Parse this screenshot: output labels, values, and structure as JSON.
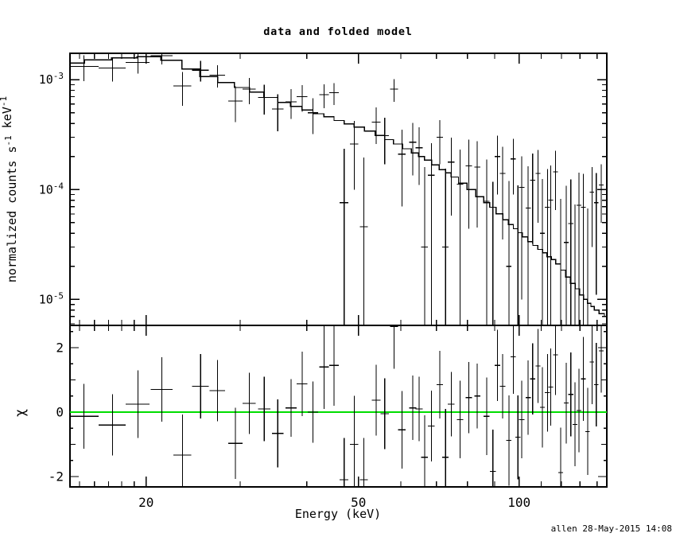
{
  "title": "data and folded model",
  "x_axis_label": "Energy (keV)",
  "y_axis_label_parts": [
    [
      "normalized counts s",
      0
    ],
    [
      "-1",
      1
    ],
    [
      " keV",
      0
    ],
    [
      "-1",
      1
    ]
  ],
  "residual_axis_label": "χ",
  "timestamp": "allen 28-May-2015 14:08",
  "colors": {
    "foreground": "#000000",
    "background": "#ffffff",
    "data": "#000000",
    "model": "#000000",
    "zero_line": "#00dd00"
  },
  "chart_data": {
    "type": "scatter",
    "title": "data and folded model",
    "xlabel": "Energy (keV)",
    "xscale": "log",
    "xlim": [
      14.4,
      146
    ],
    "xticks_labeled": [
      {
        "v": 20,
        "label": "20"
      },
      {
        "v": 50,
        "label": "50"
      },
      {
        "v": 100,
        "label": "100"
      }
    ],
    "xticks_minor": [
      15,
      16,
      17,
      18,
      19,
      30,
      40,
      60,
      70,
      80,
      90,
      110,
      120,
      130,
      140
    ],
    "panels": [
      {
        "id": "spectrum",
        "ylabel": "normalized counts s^-1 keV^-1",
        "yscale": "log",
        "ylim": [
          5.8e-06,
          0.00174
        ],
        "yticks_labeled": [
          {
            "v": 0.001,
            "mantissa": "10",
            "exp": "-3"
          },
          {
            "v": 0.0001,
            "mantissa": "10",
            "exp": "-4"
          },
          {
            "v": 1e-05,
            "mantissa": "10",
            "exp": "-5"
          }
        ],
        "legend": [
          "data (crosses with error bars)",
          "folded model (stepped line)"
        ]
      },
      {
        "id": "residuals",
        "ylabel": "χ",
        "yscale": "linear",
        "ylim": [
          -2.32,
          2.69
        ],
        "yticks_labeled": [
          {
            "v": 2,
            "label": "2"
          },
          {
            "v": 0,
            "label": "0"
          },
          {
            "v": -2,
            "label": "-2"
          }
        ],
        "yticks_minor": [
          -1,
          1
        ],
        "yticks_sub": [
          -1.5,
          -0.5,
          0.5,
          1.5,
          2.5
        ],
        "zero_line": {
          "y": 0,
          "color": "#00dd00"
        }
      }
    ],
    "bins_fields": [
      "energy_keV",
      "energy_halfwidth_keV",
      "rate_counts_s_keV",
      "rate_error",
      "chi",
      "chi_error"
    ],
    "bins": [
      [
        15.3,
        1.0,
        0.00132,
        0.00035,
        -0.13,
        1.0
      ],
      [
        17.3,
        1.0,
        0.00128,
        0.00032,
        -0.4,
        0.95
      ],
      [
        19.3,
        1.0,
        0.00144,
        0.0003,
        0.25,
        1.05
      ],
      [
        21.4,
        1.0,
        0.00166,
        0.00028,
        0.7,
        1.0
      ],
      [
        23.4,
        0.9,
        0.00088,
        0.0003,
        -1.33,
        1.25
      ],
      [
        25.3,
        0.9,
        0.00122,
        0.00026,
        0.8,
        1.0
      ],
      [
        27.2,
        0.9,
        0.0011,
        0.00025,
        0.67,
        0.95
      ],
      [
        29.4,
        0.9,
        0.00064,
        0.00023,
        -0.97,
        1.1
      ],
      [
        31.2,
        0.9,
        0.00082,
        0.00022,
        0.27,
        0.95
      ],
      [
        33.3,
        0.9,
        0.00069,
        0.00021,
        0.1,
        1.0
      ],
      [
        35.3,
        0.9,
        0.00054,
        0.0002,
        -0.66,
        1.05
      ],
      [
        37.4,
        0.9,
        0.00063,
        0.00019,
        0.13,
        0.9
      ],
      [
        39.2,
        0.9,
        0.0007,
        0.00019,
        0.88,
        1.0
      ],
      [
        41.1,
        0.9,
        0.0005,
        0.00018,
        0.0,
        0.95
      ],
      [
        43.1,
        0.9,
        0.00073,
        0.00018,
        1.4,
        1.3
      ],
      [
        45.0,
        0.9,
        0.00076,
        0.00017,
        1.45,
        1.25
      ],
      [
        47.0,
        0.9,
        7.6e-05,
        0.00016,
        -2.1,
        1.3
      ],
      [
        49.1,
        0.9,
        0.00026,
        0.00016,
        -1.0,
        1.5
      ],
      [
        51.2,
        0.9,
        4.6e-05,
        0.00015,
        -2.1,
        1.3
      ],
      [
        54.0,
        1.0,
        0.00041,
        0.00015,
        0.37,
        1.1
      ],
      [
        56.0,
        1.0,
        0.00031,
        0.00014,
        -0.05,
        1.1
      ],
      [
        58.3,
        1.0,
        0.00082,
        0.00019,
        2.65,
        1.3
      ],
      [
        60.3,
        1.0,
        0.00021,
        0.00014,
        -0.55,
        1.2
      ],
      [
        63.2,
        1.0,
        0.00027,
        0.000135,
        0.13,
        1.0
      ],
      [
        65.0,
        1.0,
        0.00024,
        0.00013,
        0.1,
        1.0
      ],
      [
        66.5,
        1.0,
        3e-05,
        0.00013,
        -1.4,
        1.3
      ],
      [
        68.5,
        1.0,
        0.000135,
        0.00013,
        -0.43,
        1.1
      ],
      [
        71.0,
        1.0,
        0.0003,
        0.00013,
        0.85,
        1.05
      ],
      [
        72.8,
        1.0,
        3e-05,
        0.000125,
        -1.4,
        1.5
      ],
      [
        74.6,
        1.1,
        0.000178,
        0.00012,
        0.25,
        1.0
      ],
      [
        77.5,
        1.1,
        0.000112,
        0.00012,
        -0.23,
        1.2
      ],
      [
        80.5,
        1.1,
        0.000164,
        0.00012,
        0.45,
        1.1
      ],
      [
        83.5,
        1.1,
        0.00016,
        0.000115,
        0.5,
        1.0
      ],
      [
        86.9,
        1.1,
        7.8e-05,
        0.00011,
        -0.13,
        1.2
      ],
      [
        89.3,
        1.1,
        3e-06,
        0.000115,
        -1.84,
        1.3
      ],
      [
        91.1,
        1.1,
        0.0002,
        0.00011,
        1.45,
        1.1
      ],
      [
        93.1,
        1.1,
        0.00014,
        0.000105,
        0.8,
        1.0
      ],
      [
        95.7,
        1.1,
        2e-05,
        0.0001,
        -0.88,
        1.4
      ],
      [
        97.5,
        1.1,
        0.00019,
        0.0001,
        1.72,
        1.15
      ],
      [
        99.5,
        1.1,
        4e-06,
        0.000105,
        -0.78,
        1.3
      ],
      [
        101.2,
        1.2,
        0.000105,
        9.5e-05,
        -0.23,
        1.2
      ],
      [
        104.0,
        1.2,
        6.8e-05,
        9.5e-05,
        0.45,
        1.15
      ],
      [
        106.0,
        1.2,
        0.000122,
        9e-05,
        1.03,
        1.1
      ],
      [
        108.5,
        1.2,
        0.00014,
        9e-05,
        1.43,
        1.15
      ],
      [
        110.6,
        1.2,
        4e-05,
        8.5e-05,
        0.15,
        1.25
      ],
      [
        113.0,
        1.2,
        6.9e-05,
        8.5e-05,
        0.6,
        1.2
      ],
      [
        114.6,
        1.2,
        8e-05,
        8.5e-05,
        0.78,
        1.2
      ],
      [
        117.0,
        1.2,
        0.000145,
        8e-05,
        1.78,
        1.25
      ],
      [
        119.6,
        1.2,
        2e-06,
        8e-05,
        -1.88,
        1.4
      ],
      [
        122.6,
        1.3,
        3.3e-05,
        7.5e-05,
        0.28,
        1.25
      ],
      [
        125.0,
        1.3,
        4.9e-05,
        7.5e-05,
        0.55,
        1.3
      ],
      [
        127.3,
        1.3,
        3e-06,
        7e-05,
        -0.38,
        1.3
      ],
      [
        129.5,
        1.3,
        7.2e-05,
        7e-05,
        0.05,
        1.3
      ],
      [
        132.0,
        1.3,
        6.9e-05,
        7e-05,
        1.03,
        1.3
      ],
      [
        134.4,
        1.3,
        2.5e-06,
        6.5e-05,
        -0.6,
        1.35
      ],
      [
        137.0,
        1.3,
        9.5e-05,
        6.5e-05,
        1.55,
        1.3
      ],
      [
        139.5,
        1.3,
        7.6e-05,
        6.5e-05,
        0.85,
        1.3
      ],
      [
        142.5,
        1.4,
        0.00011,
        6e-05,
        1.9,
        1.3
      ]
    ],
    "model_steps_fields": [
      "energy_keV",
      "rate_counts_s_keV"
    ],
    "model_steps": [
      [
        14.4,
        0.00142
      ],
      [
        16.3,
        0.00152
      ],
      [
        18.2,
        0.00158
      ],
      [
        20.3,
        0.00162
      ],
      [
        22.4,
        0.0015
      ],
      [
        24.3,
        0.00125
      ],
      [
        26.2,
        0.00107
      ],
      [
        28.3,
        0.00094
      ],
      [
        30.3,
        0.00085
      ],
      [
        32.2,
        0.00077
      ],
      [
        34.3,
        0.00069
      ],
      [
        36.3,
        0.00062
      ],
      [
        38.3,
        0.00057
      ],
      [
        40.1,
        0.00053
      ],
      [
        42.1,
        0.00049
      ],
      [
        44.0,
        0.00046
      ],
      [
        46.0,
        0.000425
      ],
      [
        48.0,
        0.000395
      ],
      [
        50.1,
        0.00037
      ],
      [
        52.5,
        0.00034
      ],
      [
        55.0,
        0.00031
      ],
      [
        57.1,
        0.000285
      ],
      [
        59.3,
        0.00026
      ],
      [
        61.7,
        0.000235
      ],
      [
        64.0,
        0.000215
      ],
      [
        65.6,
        0.0002
      ],
      [
        67.4,
        0.000185
      ],
      [
        69.7,
        0.000168
      ],
      [
        72.0,
        0.000152
      ],
      [
        73.6,
        0.000142
      ],
      [
        75.5,
        0.00013
      ],
      [
        78.5,
        0.000114
      ],
      [
        81.2,
        0.0001
      ],
      [
        84.7,
        8.6e-05
      ],
      [
        87.1,
        7.6e-05
      ],
      [
        89.1,
        6.9e-05
      ],
      [
        92.1,
        6e-05
      ],
      [
        94.4,
        5.3e-05
      ],
      [
        96.6,
        4.8e-05
      ],
      [
        98.5,
        4.4e-05
      ],
      [
        100.3,
        4.05e-05
      ],
      [
        102.6,
        3.7e-05
      ],
      [
        105.0,
        3.35e-05
      ],
      [
        107.2,
        3.1e-05
      ],
      [
        109.5,
        2.85e-05
      ],
      [
        111.7,
        2.65e-05
      ],
      [
        114.0,
        2.45e-05
      ],
      [
        115.8,
        2.3e-05
      ],
      [
        118.3,
        2.1e-05
      ],
      [
        121.0,
        1.85e-05
      ],
      [
        123.6,
        1.6e-05
      ],
      [
        126.1,
        1.4e-05
      ],
      [
        128.7,
        1.25e-05
      ],
      [
        131.0,
        1.1e-05
      ],
      [
        133.2,
        1e-05
      ],
      [
        135.4,
        9.2e-06
      ],
      [
        137.2,
        8.6e-06
      ],
      [
        139.5,
        8e-06
      ],
      [
        143.0,
        7.4e-06
      ],
      [
        146.0,
        7e-06
      ]
    ]
  }
}
